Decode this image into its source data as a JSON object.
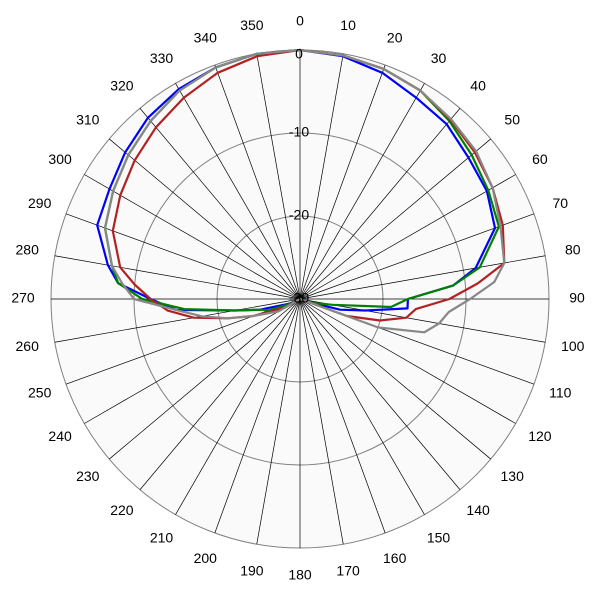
{
  "chart_data": {
    "type": "polar-line",
    "angle_ticks": [
      "0",
      "10",
      "20",
      "30",
      "40",
      "50",
      "60",
      "70",
      "80",
      "90",
      "100",
      "110",
      "120",
      "130",
      "140",
      "150",
      "160",
      "170",
      "180",
      "190",
      "200",
      "210",
      "220",
      "230",
      "240",
      "250",
      "260",
      "270",
      "280",
      "290",
      "300",
      "310",
      "320",
      "330",
      "340",
      "350"
    ],
    "r_ticks": [
      "0",
      "-10",
      "-20",
      "-30"
    ],
    "r_range": [
      -30,
      0
    ],
    "angle_direction": "clockwise",
    "zero_direction": "top",
    "grid": true,
    "series": [
      {
        "color": "#0000ff",
        "angles": [
          0,
          10,
          20,
          30,
          40,
          50,
          60,
          70,
          80,
          85,
          90,
          95,
          100,
          105,
          110,
          120,
          130,
          140,
          150,
          160,
          170,
          180,
          190,
          200,
          210,
          220,
          230,
          240,
          250,
          255,
          260,
          265,
          270,
          275,
          280,
          290,
          300,
          310,
          320,
          330,
          340,
          350
        ],
        "values": [
          0,
          -0.3,
          -1.0,
          -2.0,
          -2.5,
          -3.5,
          -4.0,
          -5.0,
          -8.5,
          -11.5,
          -17,
          -17,
          -22,
          -25,
          -29,
          -30,
          -30,
          -30,
          -30,
          -30,
          -30,
          -30,
          -30,
          -30,
          -30,
          -30,
          -30,
          -29,
          -28,
          -25,
          -22,
          -15,
          -12,
          -8.0,
          -6.5,
          -4.0,
          -3.5,
          -2.5,
          -1.5,
          -0.8,
          -0.3,
          0
        ]
      },
      {
        "color": "#008000",
        "angles": [
          0,
          10,
          20,
          30,
          40,
          50,
          60,
          70,
          80,
          85,
          90,
          95,
          100,
          105,
          110,
          120,
          130,
          140,
          150,
          160,
          170,
          180,
          190,
          200,
          210,
          220,
          230,
          240,
          250,
          255,
          260,
          265,
          270,
          275,
          280,
          290,
          300,
          310,
          320,
          330,
          340,
          350
        ],
        "values": [
          0,
          -0.2,
          -0.5,
          -1.0,
          -2.0,
          -3.0,
          -3.8,
          -4.5,
          -8.0,
          -11.5,
          -17,
          -19,
          -26,
          -28,
          -29,
          -30,
          -30,
          -30,
          -30,
          -30,
          -30,
          -30,
          -30,
          -30,
          -30,
          -30,
          -30,
          -29,
          -26,
          -25,
          -22,
          -16,
          -11,
          -8.0,
          -7.0,
          -5.0,
          -4.0,
          -3.0,
          -2.0,
          -1.0,
          -0.3,
          0
        ]
      },
      {
        "color": "#b22222",
        "angles": [
          0,
          10,
          20,
          30,
          40,
          50,
          60,
          70,
          80,
          85,
          90,
          95,
          100,
          105,
          110,
          120,
          130,
          140,
          150,
          160,
          170,
          180,
          190,
          200,
          210,
          220,
          230,
          240,
          250,
          255,
          260,
          265,
          270,
          275,
          280,
          290,
          300,
          310,
          320,
          330,
          340,
          350
        ],
        "values": [
          0,
          -0.2,
          -0.5,
          -1.0,
          -1.8,
          -2.5,
          -3.2,
          -4.0,
          -5.0,
          -8.5,
          -12,
          -16,
          -17,
          -20,
          -24,
          -30,
          -30,
          -30,
          -30,
          -30,
          -30,
          -30,
          -30,
          -30,
          -30,
          -30,
          -30,
          -28,
          -24,
          -21,
          -17,
          -14,
          -12,
          -10,
          -8.0,
          -6.0,
          -5.0,
          -4.0,
          -3.0,
          -2.0,
          -1.0,
          -0.3
        ]
      },
      {
        "color": "#888888",
        "angles": [
          0,
          10,
          20,
          30,
          40,
          50,
          60,
          70,
          80,
          85,
          90,
          95,
          100,
          105,
          110,
          120,
          130,
          140,
          150,
          160,
          170,
          180,
          190,
          200,
          210,
          220,
          230,
          240,
          250,
          255,
          260,
          265,
          270,
          275,
          280,
          290,
          300,
          310,
          320,
          330,
          340,
          350
        ],
        "values": [
          0,
          -0.2,
          -0.5,
          -1.0,
          -1.7,
          -2.3,
          -3.2,
          -4.3,
          -5.0,
          -6.5,
          -9.5,
          -12,
          -13,
          -14.5,
          -20,
          -30,
          -30,
          -30,
          -30,
          -30,
          -30,
          -30,
          -30,
          -30,
          -30,
          -30,
          -30,
          -27,
          -24,
          -21,
          -18,
          -15,
          -10,
          -8.5,
          -7.0,
          -5.0,
          -4.0,
          -3.0,
          -2.0,
          -1.0,
          -0.3,
          0
        ]
      }
    ]
  }
}
